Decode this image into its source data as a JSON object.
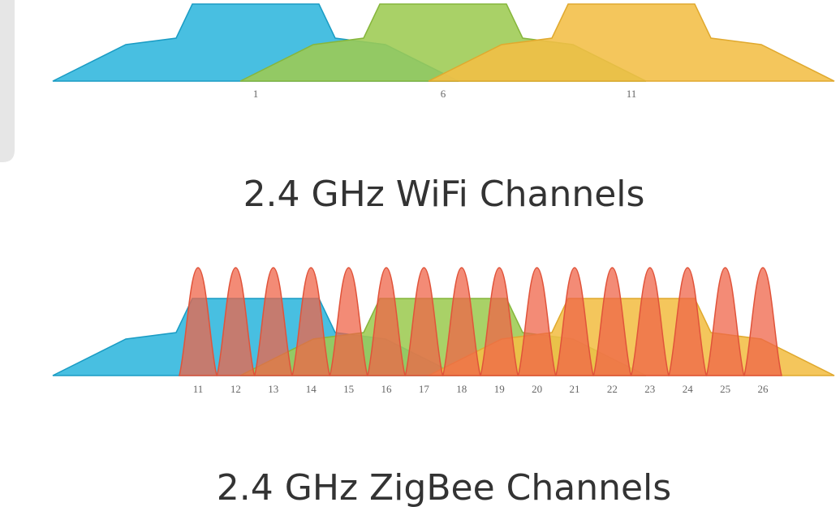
{
  "wifi": {
    "channels": [
      "1",
      "6",
      "11"
    ],
    "caption": "2.4 GHz WiFi Channels"
  },
  "zigbee": {
    "channels": [
      "11",
      "12",
      "13",
      "14",
      "15",
      "16",
      "17",
      "18",
      "19",
      "20",
      "21",
      "22",
      "23",
      "24",
      "25",
      "26"
    ],
    "caption": "2.4 GHz ZigBee Channels"
  }
}
